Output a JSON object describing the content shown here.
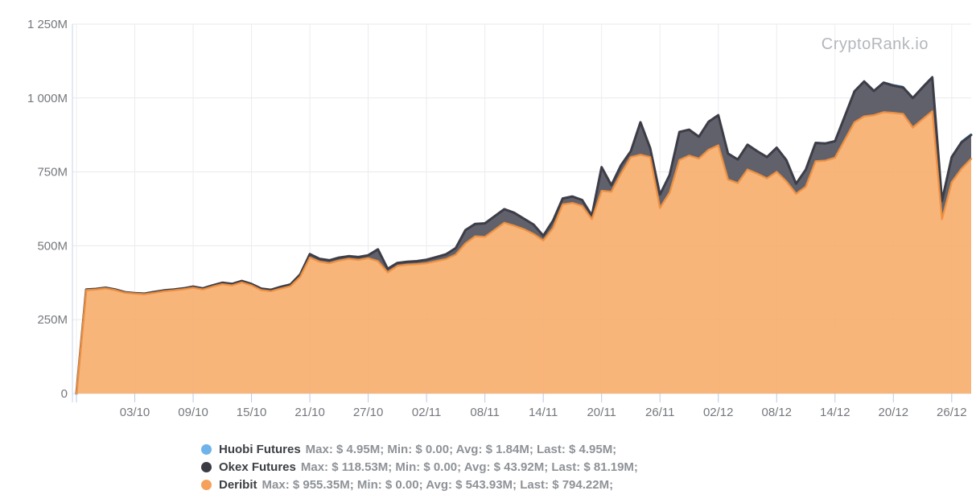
{
  "watermark": "CryptoRank.io",
  "legend": {
    "items": [
      {
        "name": "Huobi Futures",
        "stats": "Max: $ 4.95M; Min: $ 0.00; Avg: $ 1.84M; Last: $ 4.95M;",
        "color": "#6fb3ea"
      },
      {
        "name": "Okex Futures",
        "stats": "Max: $ 118.53M; Min: $ 0.00; Avg: $ 43.92M; Last: $ 81.19M;",
        "color": "#3b3b45"
      },
      {
        "name": "Deribit",
        "stats": "Max: $ 955.35M; Min: $ 0.00; Avg: $ 543.93M; Last: $ 794.22M;",
        "color": "#f5a15b"
      }
    ]
  },
  "chart_data": {
    "type": "area",
    "stacked": true,
    "title": "",
    "xlabel": "",
    "ylabel": "",
    "unit": "M (USD millions, daily futures volume)",
    "legend_position": "bottom",
    "grid": true,
    "days_total": 92,
    "x_tick_days": [
      6,
      12,
      18,
      24,
      30,
      36,
      42,
      48,
      54,
      60,
      66,
      72,
      78,
      84,
      90
    ],
    "x_tick_labels": [
      "03/10",
      "09/10",
      "15/10",
      "21/10",
      "27/10",
      "02/11",
      "08/11",
      "14/11",
      "20/11",
      "26/11",
      "02/12",
      "08/12",
      "14/12",
      "20/12",
      "26/12"
    ],
    "y_ticks": [
      {
        "value": 0,
        "label": "0"
      },
      {
        "value": 250,
        "label": "250M"
      },
      {
        "value": 500,
        "label": "500M"
      },
      {
        "value": 750,
        "label": "750M"
      },
      {
        "value": 1000,
        "label": "1 000M"
      },
      {
        "value": 1250,
        "label": "1 250M"
      }
    ],
    "ylim": [
      0,
      1250
    ],
    "series": [
      {
        "name": "Deribit",
        "color_fill": "#f7ab68",
        "color_stroke": "#ef9140",
        "values": [
          0,
          350,
          352,
          356,
          350,
          341,
          338,
          336,
          341,
          346,
          349,
          353,
          358,
          352,
          362,
          370,
          366,
          376,
          366,
          350,
          346,
          355,
          363,
          395,
          460,
          446,
          441,
          450,
          456,
          452,
          458,
          448,
          410,
          432,
          436,
          438,
          441,
          448,
          455,
          470,
          508,
          532,
          530,
          554,
          578,
          568,
          556,
          540,
          518,
          560,
          640,
          645,
          635,
          590,
          686,
          683,
          745,
          800,
          808,
          800,
          628,
          680,
          790,
          805,
          795,
          825,
          840,
          724,
          712,
          758,
          744,
          728,
          750,
          718,
          676,
          700,
          786,
          788,
          798,
          858,
          918,
          938,
          942,
          952,
          950,
          946,
          900,
          928,
          955,
          590,
          715,
          760,
          794
        ]
      },
      {
        "name": "Okex Futures",
        "color_fill": "#5c5c66",
        "color_stroke": "#3d3d47",
        "values": [
          0,
          2,
          2,
          2,
          2,
          2,
          2,
          2,
          3,
          3,
          3,
          3,
          4,
          4,
          4,
          5,
          5,
          5,
          5,
          5,
          5,
          6,
          6,
          8,
          12,
          10,
          10,
          10,
          9,
          10,
          10,
          40,
          12,
          10,
          10,
          10,
          12,
          14,
          16,
          22,
          45,
          42,
          46,
          46,
          46,
          44,
          36,
          32,
          16,
          25,
          20,
          22,
          20,
          12,
          80,
          22,
          28,
          20,
          110,
          30,
          45,
          60,
          95,
          88,
          74,
          95,
          102,
          88,
          80,
          84,
          76,
          72,
          82,
          72,
          34,
          58,
          62,
          58,
          56,
          80,
          105,
          118,
          82,
          100,
          92,
          90,
          100,
          108,
          115,
          62,
          85,
          90,
          81
        ]
      },
      {
        "name": "Huobi Futures",
        "color_fill": "#6fb3ea",
        "color_stroke": "#5aa5e4",
        "values": [
          0,
          0,
          0,
          0,
          0,
          0,
          0,
          0,
          0,
          0,
          0,
          0,
          0,
          0,
          0,
          0,
          0,
          0,
          0,
          0,
          0,
          0,
          0,
          0,
          0,
          0,
          0,
          0,
          0,
          0,
          0,
          1,
          1,
          1,
          1,
          1,
          1,
          1,
          1,
          1,
          1,
          1,
          1,
          1,
          1,
          1,
          1,
          1,
          1,
          1,
          1,
          1,
          1,
          1,
          1,
          1,
          1,
          1,
          1,
          1,
          2,
          2,
          2,
          2,
          2,
          2,
          2,
          2,
          2,
          2,
          2,
          2,
          2,
          2,
          2,
          2,
          3,
          3,
          3,
          3,
          3,
          3,
          3,
          3,
          4,
          4,
          4,
          4,
          4,
          4,
          5,
          5,
          4.95
        ]
      }
    ]
  }
}
